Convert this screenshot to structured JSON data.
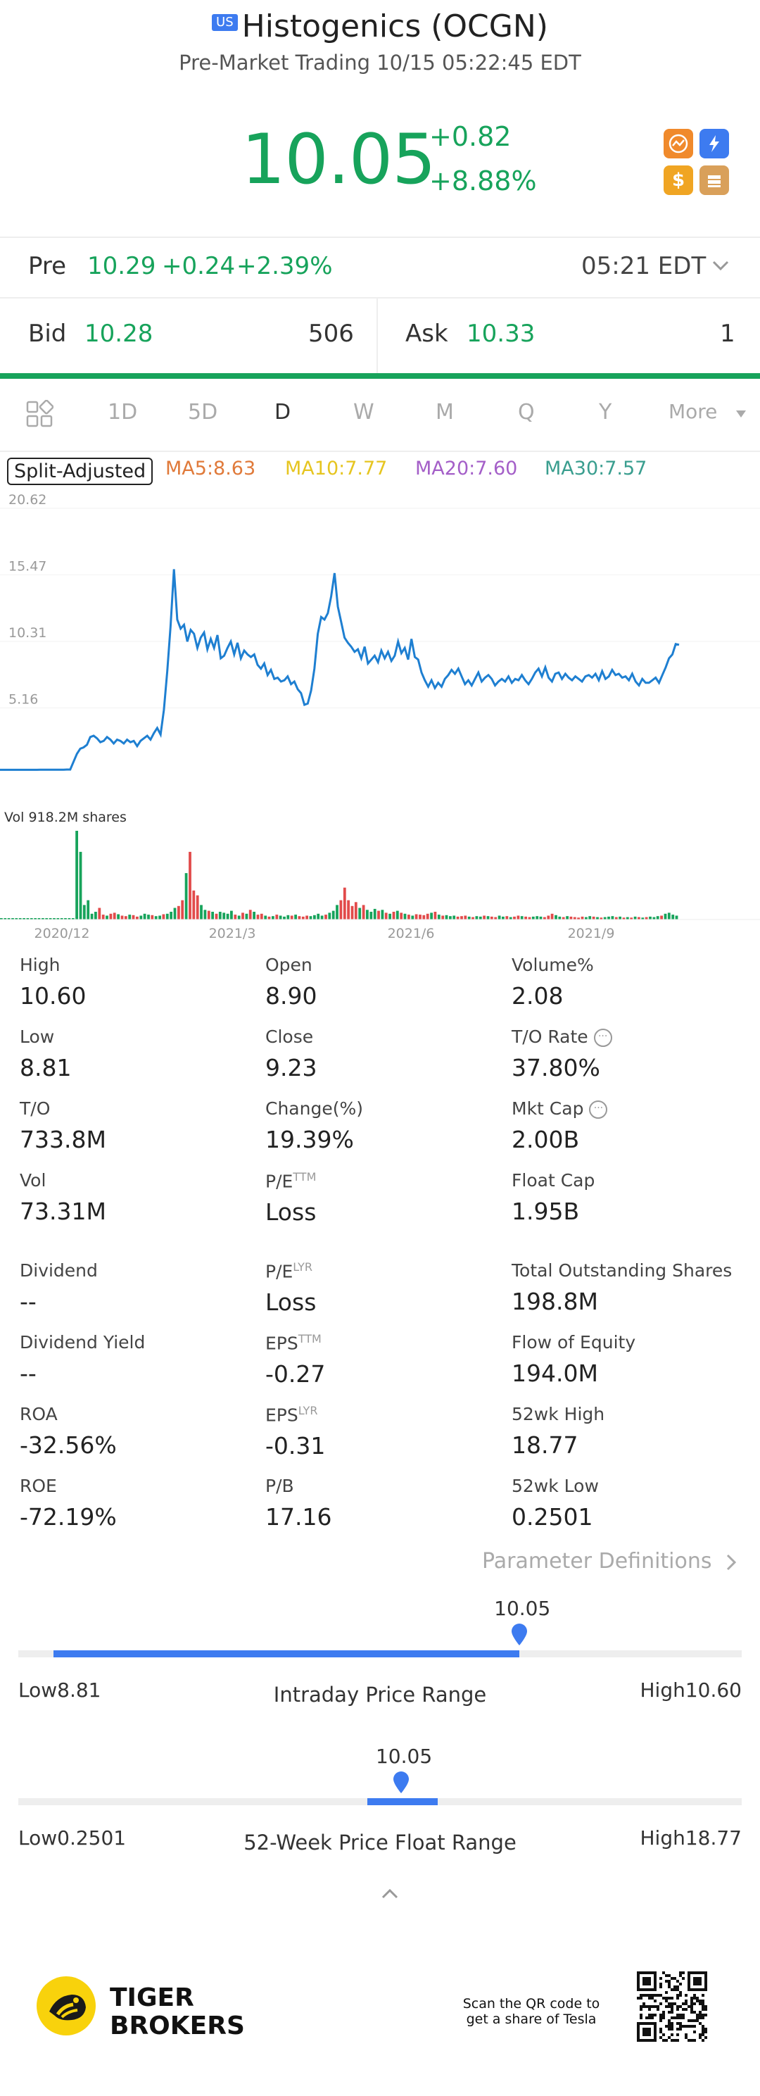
{
  "header": {
    "badge": "US",
    "title": "Histogenics (OCGN)",
    "subtitle": "Pre-Market Trading 10/15 05:22:45 EDT",
    "price": "10.05",
    "change": "+0.82",
    "change_pct": "+8.88%",
    "quick_icons": [
      "candlestick-icon",
      "lightning-icon",
      "dollar-icon",
      "books-icon"
    ]
  },
  "pre": {
    "label": "Pre",
    "price": "10.29",
    "change": "+0.24",
    "change_pct": "+2.39%",
    "time": "05:21 EDT"
  },
  "quote": {
    "bid_label": "Bid",
    "bid": "10.28",
    "bid_size": "506",
    "ask_label": "Ask",
    "ask": "10.33",
    "ask_size": "1"
  },
  "tabs": [
    "1D",
    "5D",
    "D",
    "W",
    "M",
    "Q",
    "Y",
    "More"
  ],
  "active_tab": "D",
  "indicators": {
    "split_label": "Split-Adjusted",
    "ma5": "MA5:8.63",
    "ma10": "MA10:7.77",
    "ma20": "MA20:7.60",
    "ma30": "MA30:7.57"
  },
  "colors": {
    "green": "#17a35b",
    "red": "#e24b4b",
    "blue": "#3d7bf0",
    "line": "#1e7fd1",
    "ma5": "#e07a3a",
    "ma10": "#e6c520",
    "ma20": "#a45fc8",
    "ma30": "#3a9e8f"
  },
  "chart_data": [
    {
      "type": "line",
      "title": "",
      "xlabel": "",
      "ylabel": "",
      "y_ticks": [
        "20.62",
        "15.47",
        "10.31",
        "5.16"
      ],
      "ylim": [
        0,
        20.62
      ],
      "x_ticks": [
        "2020/12",
        "2021/3",
        "2021/6",
        "2021/9"
      ],
      "grid": true,
      "series": [
        {
          "values": [
            0.36,
            0.36,
            0.36,
            0.36,
            0.36,
            0.36,
            0.36,
            0.36,
            0.36,
            0.36,
            0.36,
            0.36,
            0.37,
            0.37,
            0.37,
            0.37,
            0.37,
            0.37,
            0.37,
            0.37,
            0.38,
            0.38,
            1.0,
            1.6,
            2.0,
            2.1,
            2.3,
            2.9,
            3.0,
            2.8,
            2.5,
            2.6,
            2.9,
            2.7,
            2.4,
            2.7,
            2.6,
            2.4,
            2.7,
            2.5,
            2.6,
            2.2,
            2.6,
            2.8,
            3.0,
            2.7,
            3.2,
            3.6,
            3.1,
            5.0,
            8.0,
            11.5,
            15.9,
            12.0,
            11.3,
            11.6,
            10.3,
            11.2,
            10.9,
            9.8,
            10.6,
            11.0,
            9.7,
            10.5,
            9.8,
            10.8,
            9.0,
            9.2,
            9.8,
            10.3,
            9.3,
            10.2,
            9.0,
            9.6,
            9.3,
            9.1,
            9.3,
            8.5,
            8.2,
            8.6,
            7.7,
            8.1,
            7.4,
            7.5,
            7.2,
            7.3,
            7.6,
            7.0,
            7.2,
            6.6,
            6.3,
            5.4,
            5.5,
            6.5,
            8.2,
            10.9,
            12.2,
            12.0,
            12.5,
            13.8,
            15.6,
            13.0,
            11.8,
            10.6,
            10.2,
            9.9,
            9.5,
            9.7,
            9.0,
            9.9,
            8.6,
            8.9,
            9.2,
            8.7,
            9.6,
            9.0,
            9.5,
            8.8,
            9.2,
            10.3,
            9.4,
            9.8,
            8.9,
            10.5,
            9.1,
            8.9,
            7.9,
            7.3,
            6.8,
            7.3,
            6.7,
            7.1,
            6.8,
            7.4,
            7.7,
            8.1,
            7.8,
            8.2,
            7.6,
            7.0,
            7.3,
            6.9,
            7.4,
            7.9,
            7.2,
            7.5,
            7.7,
            7.4,
            6.9,
            7.2,
            7.4,
            7.2,
            7.6,
            7.1,
            7.4,
            7.3,
            7.7,
            7.3,
            7.0,
            7.4,
            7.9,
            8.2,
            7.6,
            8.3,
            7.5,
            7.2,
            7.8,
            7.9,
            7.4,
            7.8,
            7.5,
            7.3,
            7.6,
            7.4,
            7.2,
            7.6,
            7.7,
            7.5,
            7.8,
            7.3,
            8.0,
            7.4,
            7.6,
            8.1,
            7.7,
            7.8,
            7.5,
            7.6,
            7.3,
            7.8,
            7.2,
            6.9,
            7.4,
            7.1,
            7.1,
            7.3,
            7.5,
            7.1,
            7.7,
            8.3,
            9.0,
            9.3,
            10.1,
            10.05
          ]
        }
      ]
    },
    {
      "type": "bar",
      "title": "Vol  918.2M shares",
      "x_ticks": [
        "2020/12",
        "2021/3",
        "2021/6",
        "2021/9"
      ],
      "series": [
        {
          "values": [
            2,
            1,
            3,
            2,
            1,
            4,
            2,
            1,
            3,
            2,
            1,
            2,
            3,
            2,
            1,
            5,
            3,
            2,
            4,
            3,
            918.2,
            700,
            150,
            200,
            60,
            80,
            120,
            50,
            40,
            60,
            70,
            55,
            40,
            35,
            50,
            45,
            30,
            40,
            60,
            50,
            45,
            35,
            40,
            55,
            60,
            80,
            120,
            140,
            200,
            480,
            700,
            300,
            250,
            150,
            100,
            90,
            80,
            60,
            80,
            70,
            60,
            90,
            50,
            40,
            70,
            60,
            100,
            80,
            50,
            60,
            40,
            30,
            35,
            50,
            40,
            30,
            45,
            40,
            50,
            35,
            30,
            40,
            35,
            45,
            60,
            40,
            50,
            70,
            90,
            150,
            200,
            330,
            200,
            140,
            180,
            120,
            150,
            100,
            80,
            110,
            90,
            100,
            70,
            60,
            80,
            90,
            70,
            60,
            50,
            40,
            55,
            50,
            45,
            60,
            70,
            80,
            50,
            40,
            45,
            35,
            40,
            30,
            35,
            40,
            30,
            25,
            35,
            30,
            40,
            35,
            30,
            25,
            40,
            30,
            35,
            25,
            30,
            40,
            35,
            30,
            25,
            30,
            35,
            30,
            25,
            40,
            60,
            45,
            30,
            25,
            35,
            30,
            25,
            20,
            30,
            25,
            35,
            30,
            25,
            20,
            25,
            30,
            35,
            25,
            30,
            20,
            25,
            20,
            30,
            25,
            20,
            25,
            30,
            25,
            35,
            40,
            60,
            70,
            50,
            40
          ]
        }
      ]
    }
  ],
  "stats": [
    {
      "label": "High",
      "sup": "",
      "value": "10.60",
      "info": false
    },
    {
      "label": "Open",
      "sup": "",
      "value": "8.90",
      "info": false
    },
    {
      "label": "Volume%",
      "sup": "",
      "value": "2.08",
      "info": false
    },
    {
      "label": "Low",
      "sup": "",
      "value": "8.81",
      "info": false
    },
    {
      "label": "Close",
      "sup": "",
      "value": "9.23",
      "info": false
    },
    {
      "label": "T/O Rate",
      "sup": "",
      "value": "37.80%",
      "info": true
    },
    {
      "label": "T/O",
      "sup": "",
      "value": "733.8M",
      "info": false
    },
    {
      "label": "Change(%)",
      "sup": "",
      "value": "19.39%",
      "info": false
    },
    {
      "label": "Mkt Cap",
      "sup": "",
      "value": "2.00B",
      "info": true
    },
    {
      "label": "Vol",
      "sup": "",
      "value": "73.31M",
      "info": false
    },
    {
      "label": "P/E",
      "sup": "TTM",
      "value": "Loss",
      "info": false
    },
    {
      "label": "Float Cap",
      "sup": "",
      "value": "1.95B",
      "info": false
    },
    {
      "label": "Dividend",
      "sup": "",
      "value": "--",
      "info": false
    },
    {
      "label": "P/E",
      "sup": "LYR",
      "value": "Loss",
      "info": false
    },
    {
      "label": "Total Outstanding Shares",
      "sup": "",
      "value": "198.8M",
      "info": false
    },
    {
      "label": "Dividend Yield",
      "sup": "",
      "value": "--",
      "info": false
    },
    {
      "label": "EPS",
      "sup": "TTM",
      "value": "-0.27",
      "info": false
    },
    {
      "label": "Flow of Equity",
      "sup": "",
      "value": "194.0M",
      "info": false
    },
    {
      "label": "ROA",
      "sup": "",
      "value": "-32.56%",
      "info": false
    },
    {
      "label": "EPS",
      "sup": "LYR",
      "value": "-0.31",
      "info": false
    },
    {
      "label": "52wk High",
      "sup": "",
      "value": "18.77",
      "info": false
    },
    {
      "label": "ROE",
      "sup": "",
      "value": "-72.19%",
      "info": false
    },
    {
      "label": "P/B",
      "sup": "",
      "value": "17.16",
      "info": false
    },
    {
      "label": "52wk Low",
      "sup": "",
      "value": "0.2501",
      "info": false
    }
  ],
  "param_link": "Parameter Definitions",
  "intraday": {
    "title": "Intraday Price Range",
    "low_label": "Low8.81",
    "high_label": "High10.60",
    "current": "10.05",
    "low": 8.81,
    "high": 10.6,
    "value": 10.05
  },
  "week52": {
    "title": "52-Week Price Float Range",
    "low_label": "Low0.2501",
    "high_label": "High18.77",
    "current": "10.05",
    "low": 0.2501,
    "high": 18.77,
    "value": 10.05
  },
  "footer": {
    "brand_line1": "TIGER",
    "brand_line2": "BROKERS",
    "qr_text_1": "Scan the QR code to",
    "qr_text_2": "get a share of Tesla"
  }
}
